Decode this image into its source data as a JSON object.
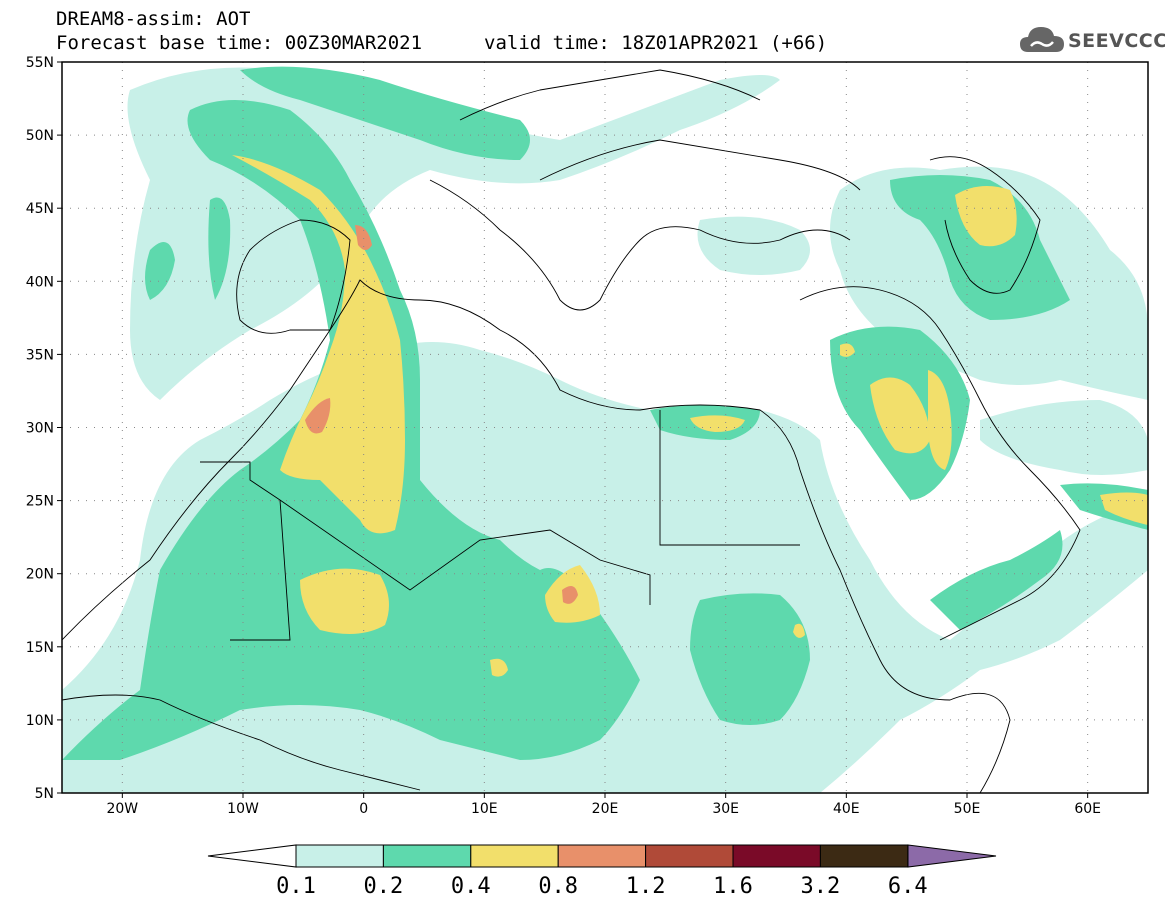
{
  "header": {
    "title": "DREAM8-assim: AOT",
    "base_time": "Forecast base time: 00Z30MAR2021",
    "valid_time": "valid time: 18Z01APR2021 (+66)"
  },
  "logo": {
    "text": "SEEVCCC",
    "icon": "cloud-logo-icon"
  },
  "map": {
    "lat_labels": [
      "55N",
      "50N",
      "45N",
      "40N",
      "35N",
      "30N",
      "25N",
      "20N",
      "15N",
      "10N",
      "5N"
    ],
    "lon_labels": [
      "20W",
      "10W",
      "0",
      "10E",
      "20E",
      "30E",
      "40E",
      "50E",
      "60E"
    ],
    "lat_range": [
      5,
      55
    ],
    "lon_range": [
      -25,
      65
    ],
    "grid": "dotted"
  },
  "colorbar": {
    "labels": [
      "0.1",
      "0.2",
      "0.4",
      "0.8",
      "1.2",
      "1.6",
      "3.2",
      "6.4"
    ],
    "colors": {
      "c0": "#ffffff",
      "c1": "#c8f0e8",
      "c2": "#5ed9ad",
      "c3": "#f2df6b",
      "c4": "#e8906a",
      "c5": "#b04a38",
      "c6": "#7a0a28",
      "c7": "#3c2a14",
      "c8": "#8c6aa8"
    }
  },
  "colors": {
    "light": "#c8f0e8",
    "green": "#5ed9ad",
    "yellow": "#f2df6b",
    "orange": "#e8906a"
  }
}
